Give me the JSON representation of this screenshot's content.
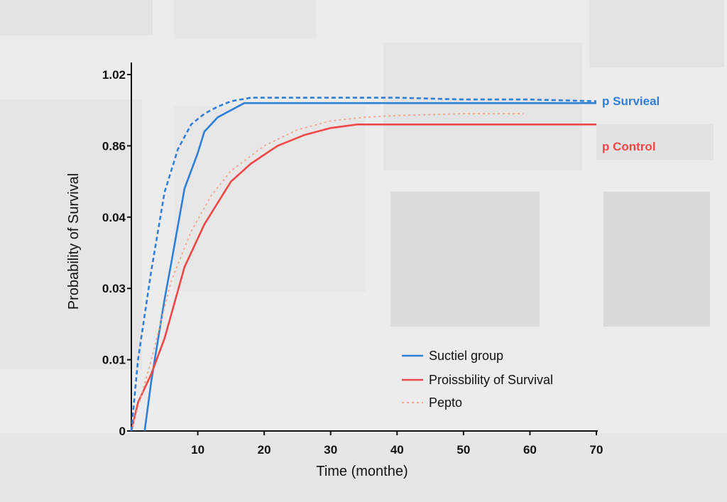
{
  "chart_data": {
    "type": "line",
    "xlabel": "Time (monthe)",
    "ylabel": "Probability of Survival",
    "xlim": [
      0,
      70
    ],
    "y_tick_labels": [
      "0",
      "0.01",
      "0.03",
      "0.04",
      "0.86",
      "1.02"
    ],
    "x_ticks": [
      10,
      20,
      30,
      40,
      50,
      60,
      70
    ],
    "series": [
      {
        "name": "Suctiel group",
        "color": "#2f7fd8",
        "style": "solid",
        "points": [
          [
            2,
            0
          ],
          [
            3,
            0.14
          ],
          [
            5,
            0.37
          ],
          [
            6,
            0.47
          ],
          [
            8,
            0.68
          ],
          [
            10,
            0.78
          ],
          [
            11,
            0.84
          ],
          [
            12,
            0.86
          ],
          [
            13,
            0.88
          ],
          [
            15,
            0.9
          ],
          [
            17,
            0.92
          ],
          [
            18,
            0.92
          ],
          [
            20,
            0.92
          ],
          [
            30,
            0.92
          ],
          [
            40,
            0.92
          ],
          [
            50,
            0.92
          ],
          [
            60,
            0.92
          ],
          [
            70,
            0.92
          ]
        ]
      },
      {
        "name": "Proissbility of Survival",
        "color": "#f04848",
        "style": "solid",
        "points": [
          [
            0,
            0
          ],
          [
            1,
            0.08
          ],
          [
            3,
            0.16
          ],
          [
            5,
            0.26
          ],
          [
            8,
            0.46
          ],
          [
            11,
            0.58
          ],
          [
            15,
            0.7
          ],
          [
            18,
            0.75
          ],
          [
            22,
            0.8
          ],
          [
            26,
            0.83
          ],
          [
            30,
            0.85
          ],
          [
            34,
            0.86
          ],
          [
            40,
            0.86
          ],
          [
            50,
            0.86
          ],
          [
            60,
            0.86
          ],
          [
            70,
            0.86
          ]
        ]
      },
      {
        "name": "Pepto",
        "color": "#f5a28a",
        "style": "dotted",
        "points": [
          [
            0,
            0
          ],
          [
            3,
            0.2
          ],
          [
            6,
            0.42
          ],
          [
            9,
            0.56
          ],
          [
            12,
            0.66
          ],
          [
            15,
            0.73
          ],
          [
            20,
            0.8
          ],
          [
            25,
            0.845
          ],
          [
            30,
            0.87
          ],
          [
            35,
            0.88
          ],
          [
            40,
            0.885
          ],
          [
            50,
            0.89
          ],
          [
            59,
            0.89
          ]
        ]
      },
      {
        "name": "",
        "color": "#2f7fd8",
        "style": "dashed",
        "points": [
          [
            0,
            0
          ],
          [
            1,
            0.2
          ],
          [
            3,
            0.45
          ],
          [
            5,
            0.67
          ],
          [
            7,
            0.79
          ],
          [
            9,
            0.86
          ],
          [
            11,
            0.89
          ],
          [
            13,
            0.91
          ],
          [
            15,
            0.925
          ],
          [
            18,
            0.935
          ],
          [
            25,
            0.935
          ],
          [
            40,
            0.935
          ],
          [
            50,
            0.93
          ],
          [
            60,
            0.93
          ],
          [
            70,
            0.925
          ]
        ]
      }
    ],
    "end_labels": [
      {
        "text": "p Survieal",
        "color": "#2f7fd8"
      },
      {
        "text": "p Control",
        "color": "#f04848"
      }
    ],
    "legend": [
      {
        "label": "Suctiel group",
        "color": "#2f7fd8",
        "style": "solid"
      },
      {
        "label": "Proissbility of Survival",
        "color": "#f04848",
        "style": "solid"
      },
      {
        "label": "Pepto",
        "color": "#f5a28a",
        "style": "dotted"
      }
    ],
    "legend_position": "lower-right",
    "grid": false
  }
}
